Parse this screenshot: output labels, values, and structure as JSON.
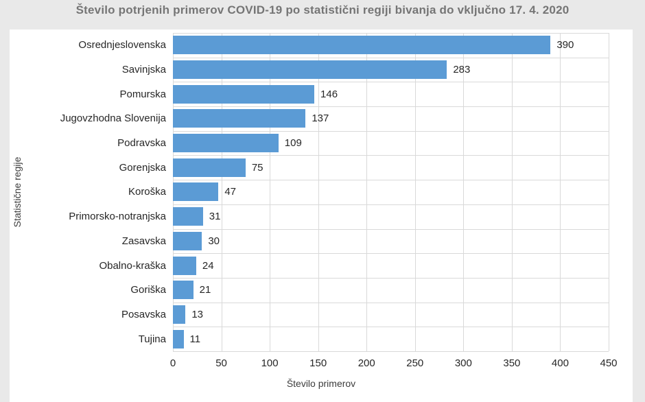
{
  "page": {
    "title": "Število potrjenih primerov COVID-19 po statistični regiji bivanja do vključno 17. 4. 2020"
  },
  "chart_data": {
    "type": "bar",
    "orientation": "horizontal",
    "title": "Število potrjenih primerov COVID-19 po statistični regiji bivanja do vključno 17. 4. 2020",
    "categories": [
      "Osrednjeslovenska",
      "Savinjska",
      "Pomurska",
      "Jugovzhodna Slovenija",
      "Podravska",
      "Gorenjska",
      "Koroška",
      "Primorsko-notranjska",
      "Zasavska",
      "Obalno-kraška",
      "Goriška",
      "Posavska",
      "Tujina"
    ],
    "values": [
      390,
      283,
      146,
      137,
      109,
      75,
      47,
      31,
      30,
      24,
      21,
      13,
      11
    ],
    "xlabel": "Število primerov",
    "ylabel": "Statistične regije",
    "xlim": [
      0,
      450
    ],
    "xticks": [
      0,
      50,
      100,
      150,
      200,
      250,
      300,
      350,
      400,
      450
    ],
    "grid": true,
    "data_labels": true,
    "legend": "none"
  },
  "colors": {
    "bar": "#5b9bd5",
    "grid": "#d9d9d9",
    "title_text": "#757575",
    "label_text": "#262626",
    "page_bg": "#e9e9e9",
    "panel_bg": "#ffffff"
  }
}
